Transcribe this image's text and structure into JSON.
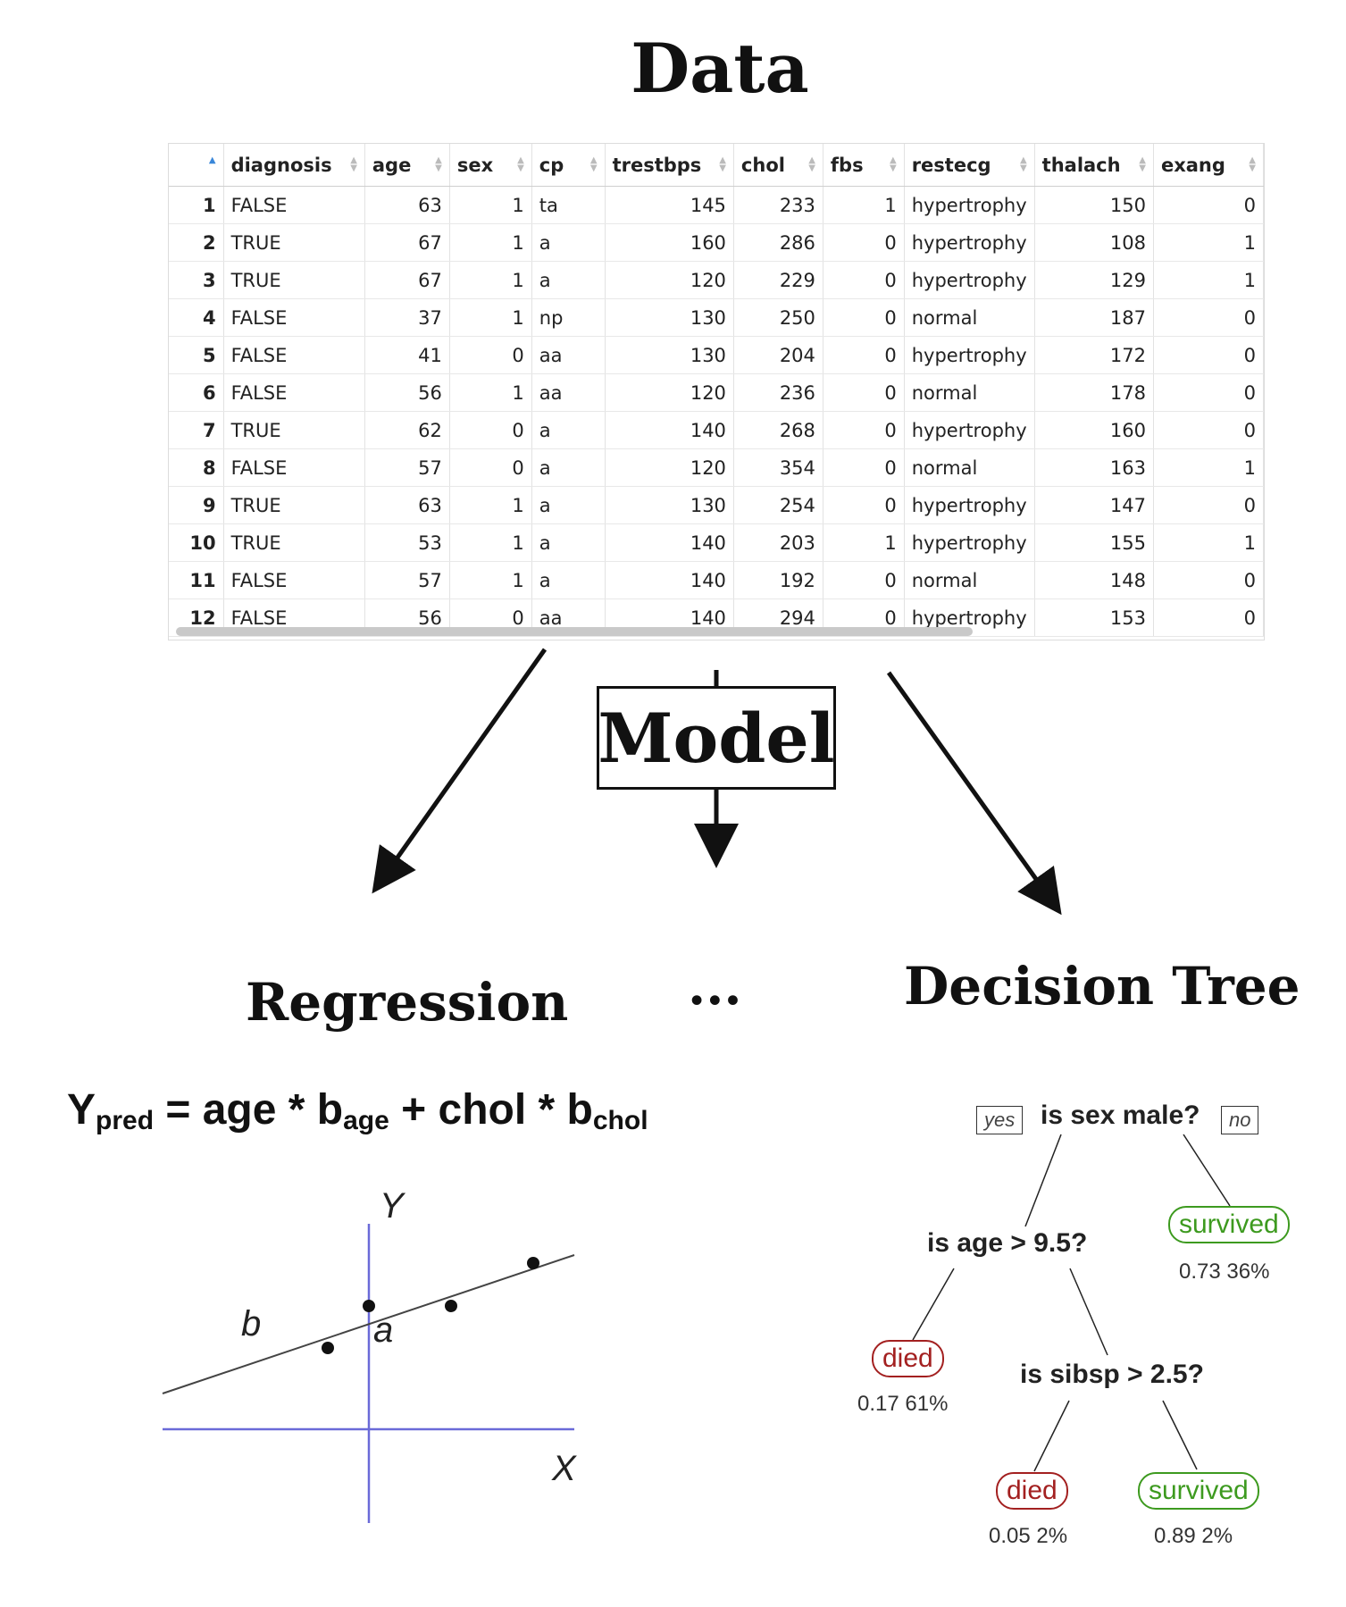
{
  "titles": {
    "data": "Data",
    "model": "Model",
    "regression": "Regression",
    "ellipsis": "...",
    "decision_tree": "Decision Tree"
  },
  "table": {
    "columns": [
      "",
      "diagnosis",
      "age",
      "sex",
      "cp",
      "trestbps",
      "chol",
      "fbs",
      "restecg",
      "thalach",
      "exang"
    ],
    "rows": [
      [
        "1",
        "FALSE",
        "63",
        "1",
        "ta",
        "145",
        "233",
        "1",
        "hypertrophy",
        "150",
        "0"
      ],
      [
        "2",
        "TRUE",
        "67",
        "1",
        "a",
        "160",
        "286",
        "0",
        "hypertrophy",
        "108",
        "1"
      ],
      [
        "3",
        "TRUE",
        "67",
        "1",
        "a",
        "120",
        "229",
        "0",
        "hypertrophy",
        "129",
        "1"
      ],
      [
        "4",
        "FALSE",
        "37",
        "1",
        "np",
        "130",
        "250",
        "0",
        "normal",
        "187",
        "0"
      ],
      [
        "5",
        "FALSE",
        "41",
        "0",
        "aa",
        "130",
        "204",
        "0",
        "hypertrophy",
        "172",
        "0"
      ],
      [
        "6",
        "FALSE",
        "56",
        "1",
        "aa",
        "120",
        "236",
        "0",
        "normal",
        "178",
        "0"
      ],
      [
        "7",
        "TRUE",
        "62",
        "0",
        "a",
        "140",
        "268",
        "0",
        "hypertrophy",
        "160",
        "0"
      ],
      [
        "8",
        "FALSE",
        "57",
        "0",
        "a",
        "120",
        "354",
        "0",
        "normal",
        "163",
        "1"
      ],
      [
        "9",
        "TRUE",
        "63",
        "1",
        "a",
        "130",
        "254",
        "0",
        "hypertrophy",
        "147",
        "0"
      ],
      [
        "10",
        "TRUE",
        "53",
        "1",
        "a",
        "140",
        "203",
        "1",
        "hypertrophy",
        "155",
        "1"
      ],
      [
        "11",
        "FALSE",
        "57",
        "1",
        "a",
        "140",
        "192",
        "0",
        "normal",
        "148",
        "0"
      ],
      [
        "12",
        "FALSE",
        "56",
        "0",
        "aa",
        "140",
        "294",
        "0",
        "hypertrophy",
        "153",
        "0"
      ]
    ]
  },
  "formula": {
    "y": "Y",
    "y_sub": "pred",
    "eq": " = age * b",
    "b_age_sub": "age",
    "plus": " + chol * b",
    "b_chol_sub": "chol"
  },
  "regression_plot": {
    "y_axis_label": "Y",
    "x_axis_label": "X",
    "slope_label": "b",
    "intercept_label": "a",
    "axis_color": "#6a6ad8"
  },
  "tree": {
    "root_question": "is sex male?",
    "yes_tag": "yes",
    "no_tag": "no",
    "q2": "is age > 9.5?",
    "q3": "is sibsp > 2.5?",
    "leaf_no": {
      "label": "survived",
      "stats": "0.73  36%"
    },
    "leaf_age_yes": {
      "label": "died",
      "stats": "0.17  61%"
    },
    "leaf_sibsp_yes": {
      "label": "died",
      "stats": "0.05  2%"
    },
    "leaf_sibsp_no": {
      "label": "survived",
      "stats": "0.89  2%"
    },
    "colors": {
      "died": "#a32020",
      "survived": "#3d9a1f"
    }
  }
}
